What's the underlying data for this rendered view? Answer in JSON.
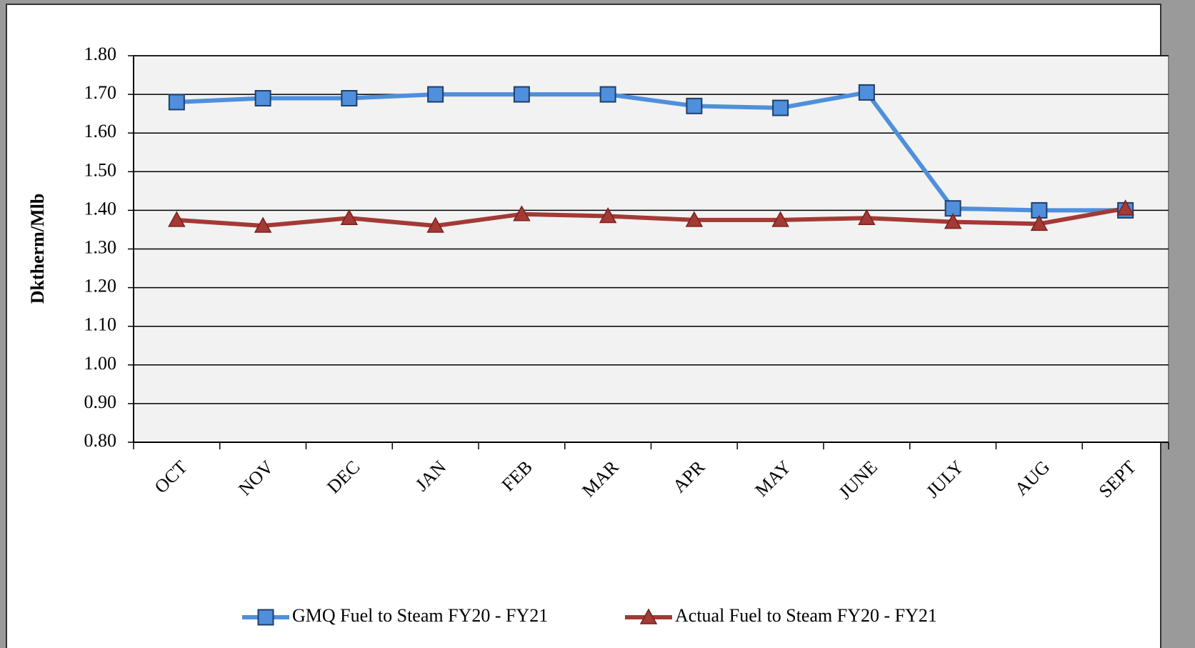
{
  "chart_data": {
    "type": "line",
    "ylabel": "Dktherm/Mlb",
    "categories": [
      "OCT",
      "NOV",
      "DEC",
      "JAN",
      "FEB",
      "MAR",
      "APR",
      "MAY",
      "JUNE",
      "JULY",
      "AUG",
      "SEPT"
    ],
    "series": [
      {
        "name": "GMQ Fuel to Steam FY20 - FY21",
        "color": "#4f8fdc",
        "marker": "square",
        "values": [
          1.68,
          1.69,
          1.69,
          1.7,
          1.7,
          1.7,
          1.67,
          1.665,
          1.705,
          1.405,
          1.4,
          1.4
        ]
      },
      {
        "name": "Actual Fuel to Steam FY20 - FY21",
        "color": "#a33a36",
        "marker": "triangle",
        "values": [
          1.375,
          1.36,
          1.38,
          1.36,
          1.39,
          1.385,
          1.375,
          1.375,
          1.38,
          1.37,
          1.365,
          1.405
        ]
      }
    ],
    "ylim": [
      0.8,
      1.8
    ],
    "yticks": [
      {
        "value": 0.8,
        "label": "0.80"
      },
      {
        "value": 0.9,
        "label": "0.90"
      },
      {
        "value": 1.0,
        "label": "1.00"
      },
      {
        "value": 1.1,
        "label": "1.10"
      },
      {
        "value": 1.2,
        "label": "1.20"
      },
      {
        "value": 1.3,
        "label": "1.30"
      },
      {
        "value": 1.4,
        "label": "1.40"
      },
      {
        "value": 1.5,
        "label": "1.50"
      },
      {
        "value": 1.6,
        "label": "1.60"
      },
      {
        "value": 1.7,
        "label": "1.70"
      },
      {
        "value": 1.8,
        "label": "1.80"
      }
    ],
    "grid": true,
    "legend": "bottom"
  }
}
